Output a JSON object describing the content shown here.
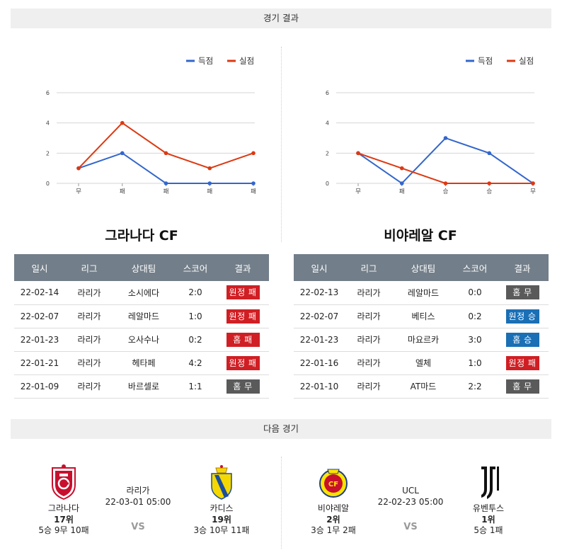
{
  "sections": {
    "results_title": "경기 결과",
    "next_title": "다음 경기"
  },
  "legend": {
    "scored": "득점",
    "conceded": "실점",
    "scored_color": "#3366cc",
    "conceded_color": "#dc3912"
  },
  "chart_data": [
    {
      "type": "line",
      "categories": [
        "무",
        "패",
        "패",
        "패",
        "패"
      ],
      "series": [
        {
          "name": "득점",
          "values": [
            1,
            2,
            0,
            0,
            0
          ]
        },
        {
          "name": "실점",
          "values": [
            1,
            4,
            2,
            1,
            2
          ]
        }
      ],
      "yticks": [
        0,
        2,
        4,
        6
      ],
      "ylim": [
        0,
        6
      ],
      "legend_position": "top-right",
      "grid": true
    },
    {
      "type": "line",
      "categories": [
        "무",
        "패",
        "승",
        "승",
        "무"
      ],
      "series": [
        {
          "name": "득점",
          "values": [
            2,
            0,
            3,
            2,
            0
          ]
        },
        {
          "name": "실점",
          "values": [
            2,
            1,
            0,
            0,
            0
          ]
        }
      ],
      "yticks": [
        0,
        2,
        4,
        6
      ],
      "ylim": [
        0,
        6
      ],
      "legend_position": "top-right",
      "grid": true
    }
  ],
  "teams": {
    "left": "그라나다 CF",
    "right": "비야레알 CF"
  },
  "table_headers": [
    "일시",
    "리그",
    "상대팀",
    "스코어",
    "결과"
  ],
  "tables": {
    "left": [
      {
        "date": "22-02-14",
        "league": "라리가",
        "opponent": "소시에다",
        "score": "2:0",
        "result": "원정 패",
        "color": "red"
      },
      {
        "date": "22-02-07",
        "league": "라리가",
        "opponent": "레알마드",
        "score": "1:0",
        "result": "원정 패",
        "color": "red"
      },
      {
        "date": "22-01-23",
        "league": "라리가",
        "opponent": "오사수나",
        "score": "0:2",
        "result": "홈 패",
        "color": "red"
      },
      {
        "date": "22-01-21",
        "league": "라리가",
        "opponent": "헤타페",
        "score": "4:2",
        "result": "원정 패",
        "color": "red"
      },
      {
        "date": "22-01-09",
        "league": "라리가",
        "opponent": "바르셀로",
        "score": "1:1",
        "result": "홈 무",
        "color": "gray"
      }
    ],
    "right": [
      {
        "date": "22-02-13",
        "league": "라리가",
        "opponent": "레알마드",
        "score": "0:0",
        "result": "홈 무",
        "color": "gray"
      },
      {
        "date": "22-02-07",
        "league": "라리가",
        "opponent": "베티스",
        "score": "0:2",
        "result": "원정 승",
        "color": "blue"
      },
      {
        "date": "22-01-23",
        "league": "라리가",
        "opponent": "마요르카",
        "score": "3:0",
        "result": "홈 승",
        "color": "blue"
      },
      {
        "date": "22-01-16",
        "league": "라리가",
        "opponent": "엘체",
        "score": "1:0",
        "result": "원정 패",
        "color": "red"
      },
      {
        "date": "22-01-10",
        "league": "라리가",
        "opponent": "AT마드",
        "score": "2:2",
        "result": "홈 무",
        "color": "gray"
      }
    ]
  },
  "next_matches": {
    "left": {
      "home": {
        "name": "그라나다",
        "rank": "17위",
        "record": "5승 9무 10패",
        "logo": "granada-crest"
      },
      "league": "라리가",
      "datetime": "22-03-01 05:00",
      "vs": "VS",
      "away": {
        "name": "카디스",
        "rank": "19위",
        "record": "3승 10무 11패",
        "logo": "cadiz-crest"
      }
    },
    "right": {
      "home": {
        "name": "비야레알",
        "rank": "2위",
        "record": "3승 1무 2패",
        "logo": "villarreal-crest"
      },
      "league": "UCL",
      "datetime": "22-02-23 05:00",
      "vs": "VS",
      "away": {
        "name": "유벤투스",
        "rank": "1위",
        "record": "5승 1패",
        "logo": "juventus-logo"
      }
    }
  }
}
